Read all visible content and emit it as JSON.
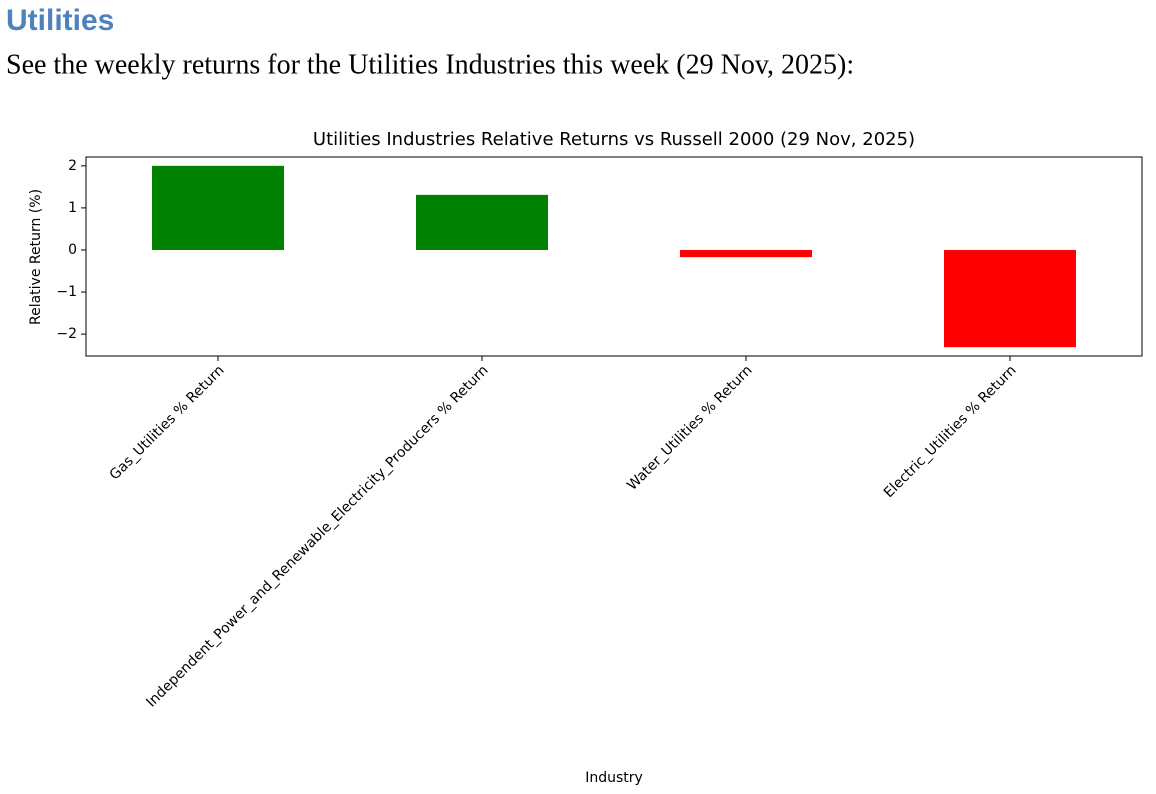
{
  "header": {
    "title": "Utilities"
  },
  "intro": "See the weekly returns for the Utilities Industries this week (29 Nov, 2025):",
  "chart_data": {
    "type": "bar",
    "title": "Utilities Industries Relative Returns vs Russell 2000 (29 Nov, 2025)",
    "x_label": "Industry",
    "y_label": "Relative Return (%)",
    "categories": [
      "Gas_Utilities % Return",
      "Independent_Power_and_Renewable_Electricity_Producers % Return",
      "Water_Utilities % Return",
      "Electric_Utilities % Return"
    ],
    "values": [
      2.0,
      1.31,
      -0.17,
      -2.31
    ],
    "colors": [
      "green",
      "green",
      "red",
      "red"
    ],
    "ylim": [
      -2.52,
      2.21
    ],
    "yticks": [
      {
        "value": -2,
        "label": "−2"
      },
      {
        "value": -1,
        "label": "−1"
      },
      0,
      1,
      2
    ],
    "grid": false
  }
}
